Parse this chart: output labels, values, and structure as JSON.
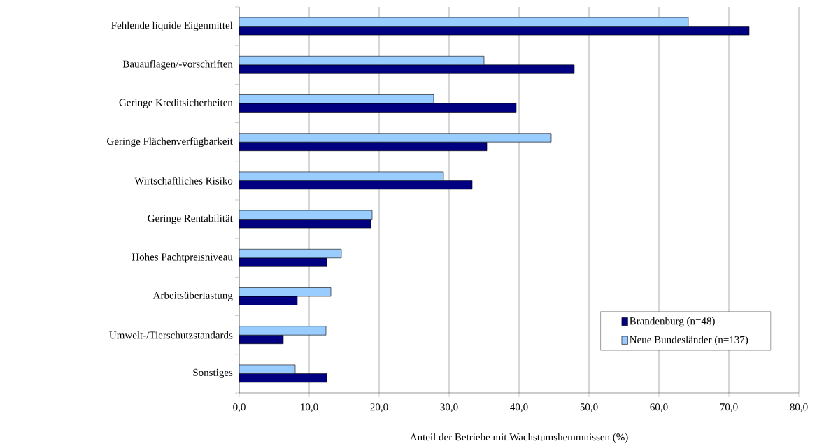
{
  "chart_data": {
    "type": "bar",
    "orientation": "horizontal",
    "xlabel": "Anteil der Betriebe mit Wachstumshemmnissen (%)",
    "categories": [
      "Fehlende liquide Eigenmittel",
      "Bauauflagen/-vorschriften",
      "Geringe Kreditsicherheiten",
      "Geringe Flächenverfügbarkeit",
      "Wirtschaftliches Risiko",
      "Geringe Rentabilität",
      "Hohes Pachtpreisniveau",
      "Arbeitsüberlastung",
      "Umwelt-/Tierschutzstandards",
      "Sonstiges"
    ],
    "series": [
      {
        "name": "Brandenburg (n=48)",
        "color": "#000080",
        "values": [
          72.9,
          47.9,
          39.6,
          35.4,
          33.3,
          18.8,
          12.5,
          8.3,
          6.3,
          12.5
        ]
      },
      {
        "name": "Neue Bundesländer (n=137)",
        "color": "#99ccff",
        "values": [
          64.2,
          35.0,
          27.8,
          44.6,
          29.2,
          19.0,
          14.6,
          13.1,
          12.4,
          8.0
        ]
      }
    ],
    "xlim": [
      0,
      80
    ],
    "xticks": [
      {
        "value": 0,
        "label": "0,0"
      },
      {
        "value": 10,
        "label": "10,0"
      },
      {
        "value": 20,
        "label": "20,0"
      },
      {
        "value": 30,
        "label": "30,0"
      },
      {
        "value": 40,
        "label": "40,0"
      },
      {
        "value": 50,
        "label": "50,0"
      },
      {
        "value": 60,
        "label": "60,0"
      },
      {
        "value": 70,
        "label": "70,0"
      },
      {
        "value": 80,
        "label": "80,0"
      }
    ],
    "grid": "x",
    "legend": "bottom right"
  }
}
